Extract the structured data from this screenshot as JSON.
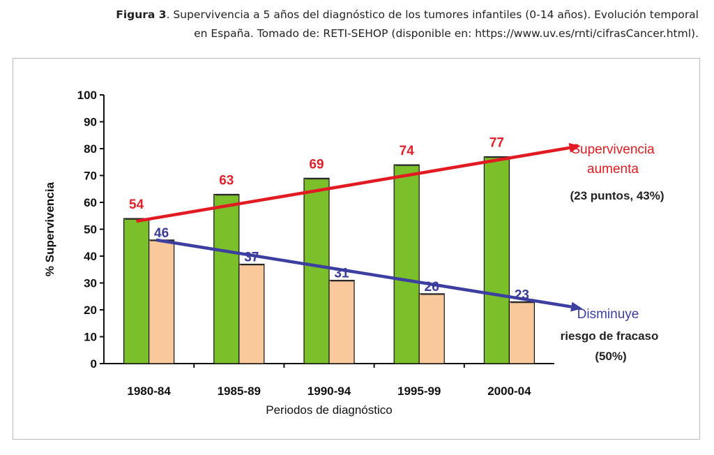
{
  "caption": {
    "label": "Figura 3",
    "text": ". Supervivencia a 5 años del diagnóstico de los tumores infantiles (0-14 años). Evolución temporal",
    "text2": "en España. Tomado de: RETI-SEHOP (disponible en: https://www.uv.es/rnti/cifrasCancer.html)."
  },
  "chart_data": {
    "type": "bar",
    "title": "",
    "xlabel": "Periodos de diagnóstico",
    "ylabel": "% Supervivencia",
    "ylim": [
      0,
      100
    ],
    "yticks": [
      0,
      10,
      20,
      30,
      40,
      50,
      60,
      70,
      80,
      90,
      100
    ],
    "grid": false,
    "categories": [
      "1980-84",
      "1985-89",
      "1990-94",
      "1995-99",
      "2000-04"
    ],
    "series": [
      {
        "name": "Supervivencia",
        "values": [
          54,
          63,
          69,
          74,
          77
        ],
        "color": "#7bbf2a",
        "label_color": "#e0202a"
      },
      {
        "name": "Riesgo de fracaso",
        "values": [
          46,
          37,
          31,
          26,
          23
        ],
        "color": "#f9c99b",
        "label_color": "#3b3b9a"
      }
    ],
    "trends": [
      {
        "name": "Supervivencia aumenta",
        "color": "#e21b23",
        "from": [
          0,
          53
        ],
        "to": [
          4.93,
          81
        ]
      },
      {
        "name": "Disminuye riesgo de fracaso",
        "color": "#3c3fa0",
        "from": [
          0.22,
          46
        ],
        "to": [
          4.95,
          20.5
        ]
      }
    ],
    "annotations": [
      {
        "lines": [
          "Supervivencia",
          "aumenta"
        ],
        "color": "#e21b23"
      },
      {
        "lines": [
          "(23 puntos, 43%)"
        ],
        "color": "#222222"
      },
      {
        "lines": [
          "Disminuye"
        ],
        "color": "#3c3fa0"
      },
      {
        "lines": [
          "riesgo de fracaso",
          "(50%)"
        ],
        "color": "#222222"
      }
    ]
  }
}
